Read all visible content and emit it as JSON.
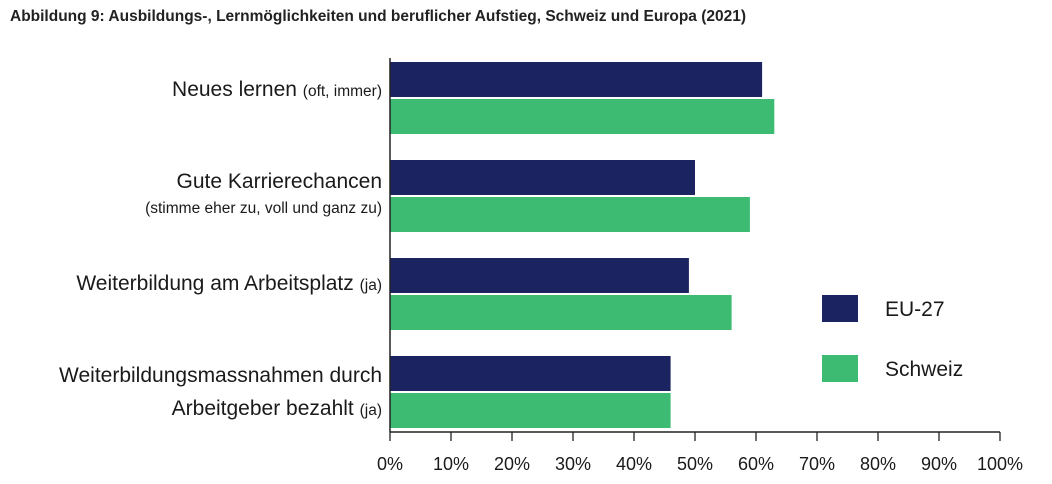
{
  "title": "Abbildung 9: Ausbildungs-, Lernmöglichkeiten und beruflicher Aufstieg, Schweiz und Europa (2021)",
  "colors": {
    "eu27": "#1b2360",
    "schweiz": "#3dbb73",
    "axis": "#222222"
  },
  "chart_data": {
    "type": "bar",
    "orientation": "horizontal",
    "title": "Abbildung 9: Ausbildungs-, Lernmöglichkeiten und beruflicher Aufstieg, Schweiz und Europa (2021)",
    "categories": [
      {
        "lines": [
          {
            "main": "Neues lernen",
            "qualifier": "(oft, immer)"
          }
        ]
      },
      {
        "lines": [
          {
            "main": "Gute Karrierechancen",
            "qualifier": ""
          },
          {
            "main": "",
            "qualifier": "(stimme eher zu, voll und ganz zu)"
          }
        ]
      },
      {
        "lines": [
          {
            "main": "Weiterbildung am Arbeitsplatz",
            "qualifier": "(ja)"
          }
        ]
      },
      {
        "lines": [
          {
            "main": "Weiterbildungsmassnahmen durch",
            "qualifier": ""
          },
          {
            "main": "Arbeitgeber bezahlt",
            "qualifier": "(ja)"
          }
        ]
      }
    ],
    "series": [
      {
        "name": "EU-27",
        "color": "#1b2360",
        "values": [
          61,
          50,
          49,
          46
        ]
      },
      {
        "name": "Schweiz",
        "color": "#3dbb73",
        "values": [
          63,
          59,
          56,
          46
        ]
      }
    ],
    "xlim": [
      0,
      100
    ],
    "xticks": [
      0,
      10,
      20,
      30,
      40,
      50,
      60,
      70,
      80,
      90,
      100
    ],
    "tick_suffix": "%",
    "legend": "right",
    "grid": false
  }
}
